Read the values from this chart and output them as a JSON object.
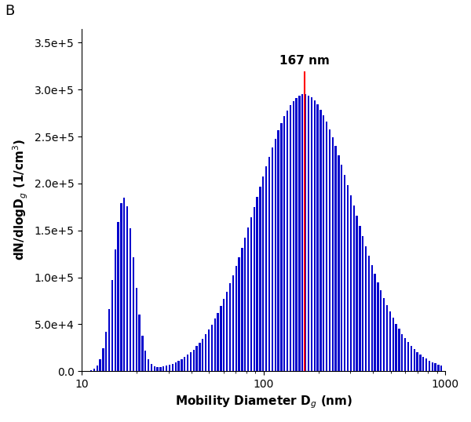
{
  "title_label": "B",
  "xlabel": "Mobility Diameter D$_g$ (nm)",
  "ylabel": "dN/dlogD$_g$ (1/cm$^3$)",
  "peak_label": "167 nm",
  "peak_diameter": 167,
  "bar_color": "#0000CC",
  "peak_line_color": "#FF0000",
  "ylim": [
    0,
    365000.0
  ],
  "xlim": [
    10,
    1000
  ],
  "yticks": [
    0.0,
    50000,
    100000,
    150000,
    200000,
    250000,
    300000,
    350000
  ],
  "ytick_labels": [
    "0.0",
    "5.0e+4",
    "1.0e+5",
    "1.5e+5",
    "2.0e+5",
    "2.5e+5",
    "3.0e+5",
    "3.5e+5"
  ],
  "n_bins": 120,
  "nuc_mu": 17,
  "nuc_sigma": 0.13,
  "nuc_scale": 185000.0,
  "acc_mu": 167,
  "acc_sigma": 0.62,
  "acc_scale": 295000.0
}
